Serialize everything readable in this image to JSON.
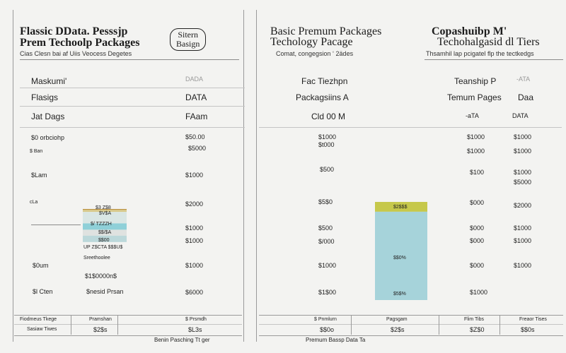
{
  "left": {
    "title_lines": [
      "Flassic DData. Pesssjp",
      "Prem Techoolp Packages"
    ],
    "badge_lines": [
      "Sitern",
      "Basign"
    ],
    "subtitle": "Cias Clesn bai af Uiis Veocess Degetes",
    "head_rows": [
      {
        "label": "Maskumi'",
        "value": "DADA"
      },
      {
        "label": "Flasigs",
        "value": "DATA"
      },
      {
        "label": "Jat Dags",
        "value": "FAam"
      }
    ],
    "rows": [
      {
        "label": "$0 orbciohp",
        "value": "$50.00"
      },
      {
        "label": "",
        "value": "$5000"
      },
      {
        "label": "$ Ban",
        "value": ""
      },
      {
        "label": "$Lam",
        "value": "$1000"
      },
      {
        "label": "cLa",
        "value": "$2000"
      },
      {
        "label": "",
        "value": "$1000"
      },
      {
        "label": "",
        "value": "$1000"
      },
      {
        "label": "$0um",
        "value": "$1000"
      },
      {
        "label": "$l Cten",
        "value": "$6000"
      }
    ],
    "stack_labels": [
      "$3 Z$8",
      "$V$A",
      "$/ TZZZH",
      "$$/$A",
      "$$00",
      "UP Z$CTA $$$U$"
    ],
    "notes": [
      "Sreethoolee",
      "$1$0000n$",
      "$nesid Prsan"
    ],
    "footer": {
      "headers": [
        "Fiodmeus Tkege",
        "Pramshan",
        "$ Prsmdh"
      ],
      "values": [
        "Sasiaw Tiwes",
        "$2$s",
        "$L3s"
      ],
      "caption": "Benin Pasching Tt ger"
    }
  },
  "right": {
    "title_a_lines": [
      "Basic Premum Packages",
      "Techology Pacage"
    ],
    "title_b_lines": [
      "Copashuibp M'",
      "Techohalgasid dl Tiers"
    ],
    "subtitle_a": "Comat, congegsion ‘ 2ädes",
    "subtitle_b": "Thsamhil lap pcigatel  flp the tectkedgs",
    "head_rows_a": [
      {
        "label": "Fac Tiezhpn"
      },
      {
        "label": "Packagsiins A"
      },
      {
        "label": "Cld 00 M"
      }
    ],
    "head_rows_b": [
      {
        "label": "Teanship P",
        "value": "-ATA"
      },
      {
        "label": "Temum Pages",
        "value": "Daa"
      },
      {
        "label": "-aTA",
        "value": "DATA"
      }
    ],
    "col1": [
      "$1000",
      "$t000",
      "$500",
      "$5$0",
      "$500",
      "$/000",
      "$1000",
      "$1$00"
    ],
    "col2": [
      "$1000",
      "$1000",
      "$100",
      "$000",
      "$000",
      "$000",
      "$000",
      "$1000"
    ],
    "col3": [
      "$1000",
      "$1000",
      "$1000",
      "$5000",
      "$2000",
      "$1000",
      "$1000",
      "$1000"
    ],
    "bar_labels": [
      "$2$$$",
      "$$0%",
      "$5$%"
    ],
    "footer": {
      "headers": [
        "$ Pnmlurn",
        "Pagsgam",
        "Flim Tibs",
        "Freaor Tises"
      ],
      "values": [
        "$$0o",
        "$2$s",
        "$Z$0",
        "$$0s"
      ],
      "caption": "Premum Bassp Data Ta"
    }
  },
  "chart_data": [
    {
      "type": "bar",
      "stacked": true,
      "title": "",
      "categories": [
        ""
      ],
      "series": [
        {
          "color": "#b98d3c",
          "values": [
            0.02
          ]
        },
        {
          "color": "#d8c98a",
          "values": [
            0.05
          ]
        },
        {
          "color": "#d9e6e4",
          "values": [
            0.27
          ]
        },
        {
          "color": "#8fd0d8",
          "values": [
            0.15
          ]
        },
        {
          "color": "#dfe2e0",
          "values": [
            0.14
          ]
        },
        {
          "color": "#bcd8da",
          "values": [
            0.15
          ]
        }
      ],
      "ylim": [
        0,
        1
      ]
    },
    {
      "type": "bar",
      "stacked": true,
      "title": "",
      "categories": [
        ""
      ],
      "series": [
        {
          "color": "#c6c84b",
          "values": [
            0.1
          ]
        },
        {
          "color": "#a6d3da",
          "values": [
            0.9
          ]
        }
      ],
      "ylim": [
        0,
        1
      ]
    }
  ],
  "colors": {
    "background": "#f3f3f1",
    "separator": "#9a9a9a"
  }
}
